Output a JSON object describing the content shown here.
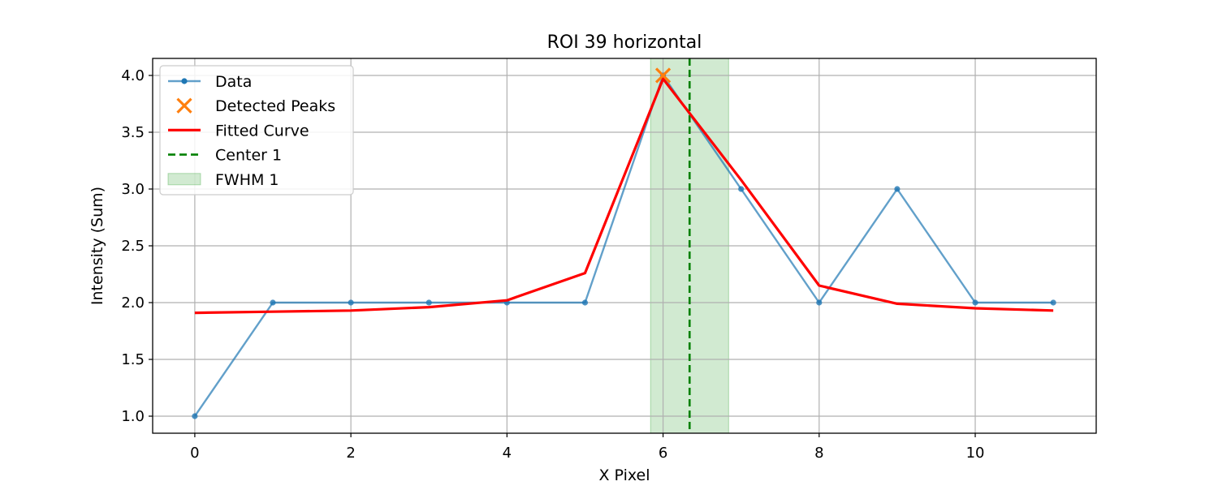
{
  "chart_data": {
    "type": "line",
    "title": "ROI 39 horizontal",
    "xlabel": "X Pixel",
    "ylabel": "Intensity (Sum)",
    "xlim": [
      -0.54,
      11.55
    ],
    "ylim": [
      0.85,
      4.15
    ],
    "xticks": [
      0,
      2,
      4,
      6,
      8,
      10
    ],
    "yticks": [
      1.0,
      1.5,
      2.0,
      2.5,
      3.0,
      3.5,
      4.0
    ],
    "xtick_labels": [
      "0",
      "2",
      "4",
      "6",
      "8",
      "10"
    ],
    "ytick_labels": [
      "1.0",
      "1.5",
      "2.0",
      "2.5",
      "3.0",
      "3.5",
      "4.0"
    ],
    "grid": true,
    "legend_position": "upper-left",
    "x": [
      0,
      1,
      2,
      3,
      4,
      5,
      6,
      7,
      8,
      9,
      10,
      11
    ],
    "series": [
      {
        "name": "Data",
        "kind": "line-markers",
        "color": "#1f77b4",
        "values": [
          1,
          2,
          2,
          2,
          2,
          2,
          4,
          3,
          2,
          3,
          2,
          2
        ]
      },
      {
        "name": "Fitted Curve",
        "kind": "line",
        "color": "#ff0000",
        "values": [
          1.91,
          1.92,
          1.93,
          1.96,
          2.02,
          2.26,
          3.97,
          3.08,
          2.15,
          1.99,
          1.95,
          1.93
        ]
      }
    ],
    "peaks": {
      "name": "Detected Peaks",
      "color": "#ff7f0e",
      "points": [
        {
          "x": 6,
          "y": 4.0
        }
      ]
    },
    "center": {
      "name": "Center 1",
      "color": "#008000",
      "x": 6.34
    },
    "fwhm": {
      "name": "FWHM 1",
      "color": "#2ca02c",
      "x_start": 5.84,
      "x_end": 6.84
    },
    "legend": [
      "Data",
      "Detected Peaks",
      "Fitted Curve",
      "Center 1",
      "FWHM 1"
    ]
  }
}
